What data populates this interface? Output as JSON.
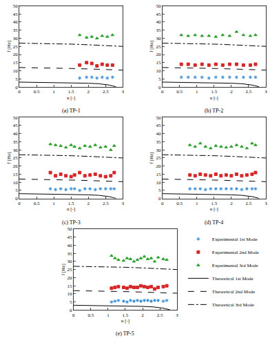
{
  "chart_data": [
    {
      "type": "scatter",
      "title": "(a) TP-1",
      "x_label": "u [-]",
      "y_label": "f [Hz]",
      "xlim": [
        0,
        3
      ],
      "xticks": [
        0,
        0.5,
        1,
        1.5,
        2,
        2.5,
        3
      ],
      "ylim": [
        0,
        50
      ],
      "yticks": [
        0,
        5,
        10,
        15,
        20,
        25,
        30,
        35,
        40,
        45,
        50
      ],
      "grid": false,
      "series": [
        {
          "name": "Experimental 1st Mode",
          "type": "scatter",
          "color": "#3a8fd6",
          "marker": "asterisk",
          "x": [
            1.75,
            1.95,
            2.1,
            2.25,
            2.4,
            2.55,
            2.7
          ],
          "values": [
            5.5,
            6,
            6,
            5.5,
            6,
            5.5,
            6
          ]
        },
        {
          "name": "Experimental 2nd Mode",
          "type": "scatter",
          "color": "#d62728",
          "marker": "square",
          "x": [
            1.75,
            1.95,
            2.1,
            2.25,
            2.4,
            2.55,
            2.7
          ],
          "values": [
            13.5,
            15,
            14.5,
            13,
            14,
            13.5,
            13.5
          ]
        },
        {
          "name": "Experimental 3rd Mode",
          "type": "scatter",
          "color": "#2ca02c",
          "marker": "triangle-up",
          "x": [
            1.75,
            1.95,
            2.1,
            2.25,
            2.4,
            2.55,
            2.7
          ],
          "values": [
            32,
            30.5,
            31,
            30,
            31.5,
            31,
            32
          ]
        },
        {
          "name": "Theoretical 1st Mode",
          "type": "line",
          "color": "#000000",
          "line_style": "solid",
          "x": [
            0,
            0.5,
            1,
            1.5,
            2,
            2.3,
            2.5,
            2.6,
            2.7,
            2.8
          ],
          "values": [
            3,
            2.9,
            2.8,
            2.6,
            2.3,
            2,
            1.6,
            1.2,
            0.7,
            0.1
          ]
        },
        {
          "name": "Theoretical 2nd Mode",
          "type": "line",
          "color": "#000000",
          "line_style": "dash",
          "x": [
            0,
            0.5,
            1,
            1.5,
            2,
            2.5,
            3
          ],
          "values": [
            12,
            11.9,
            11.7,
            11.4,
            11.1,
            10.8,
            10.4
          ]
        },
        {
          "name": "Theoretical 3rd Mode",
          "type": "line",
          "color": "#000000",
          "line_style": "dashdot",
          "x": [
            0,
            0.5,
            1,
            1.5,
            2,
            2.5,
            3
          ],
          "values": [
            27,
            26.9,
            26.7,
            26.4,
            26,
            25.5,
            25
          ]
        }
      ]
    },
    {
      "type": "scatter",
      "title": "(b) TP-2",
      "x_label": "u [-]",
      "y_label": "f [Hz]",
      "xlim": [
        0,
        3
      ],
      "xticks": [
        0,
        0.5,
        1,
        1.5,
        2,
        2.5,
        3
      ],
      "ylim": [
        0,
        50
      ],
      "yticks": [
        0,
        5,
        10,
        15,
        20,
        25,
        30,
        35,
        40,
        45,
        50
      ],
      "grid": false,
      "series": [
        {
          "name": "Experimental 1st Mode",
          "type": "scatter",
          "color": "#3a8fd6",
          "marker": "asterisk",
          "x": [
            0.55,
            0.75,
            0.95,
            1.15,
            1.35,
            1.55,
            1.75,
            1.95,
            2.15,
            2.35,
            2.55,
            2.7
          ],
          "values": [
            6,
            6,
            6,
            6,
            5.5,
            6,
            6,
            6,
            6,
            6,
            6,
            6
          ]
        },
        {
          "name": "Experimental 2nd Mode",
          "type": "scatter",
          "color": "#d62728",
          "marker": "square",
          "x": [
            0.55,
            0.75,
            0.95,
            1.15,
            1.35,
            1.55,
            1.75,
            1.95,
            2.15,
            2.35,
            2.55,
            2.7
          ],
          "values": [
            14,
            14,
            13.5,
            14,
            13.5,
            14,
            13.5,
            14,
            14,
            13.5,
            13.5,
            14
          ]
        },
        {
          "name": "Experimental 3rd Mode",
          "type": "scatter",
          "color": "#2ca02c",
          "marker": "triangle-up",
          "x": [
            0.55,
            0.75,
            0.95,
            1.15,
            1.35,
            1.55,
            1.75,
            1.95,
            2.15,
            2.35,
            2.55,
            2.7
          ],
          "values": [
            32,
            31.5,
            32,
            31.5,
            31.5,
            31,
            32,
            31.5,
            34,
            32,
            31.5,
            32
          ]
        },
        {
          "name": "Theoretical 1st Mode",
          "type": "line",
          "color": "#000000",
          "line_style": "solid",
          "x": [
            0,
            0.5,
            1,
            1.5,
            2,
            2.3,
            2.5,
            2.6,
            2.7,
            2.8
          ],
          "values": [
            3,
            2.9,
            2.8,
            2.6,
            2.3,
            2,
            1.6,
            1.2,
            0.7,
            0.1
          ]
        },
        {
          "name": "Theoretical 2nd Mode",
          "type": "line",
          "color": "#000000",
          "line_style": "dash",
          "x": [
            0,
            0.5,
            1,
            1.5,
            2,
            2.5,
            3
          ],
          "values": [
            12,
            11.9,
            11.7,
            11.4,
            11.1,
            10.8,
            10.4
          ]
        },
        {
          "name": "Theoretical 3rd Mode",
          "type": "line",
          "color": "#000000",
          "line_style": "dashdot",
          "x": [
            0,
            0.5,
            1,
            1.5,
            2,
            2.5,
            3
          ],
          "values": [
            27,
            26.9,
            26.7,
            26.4,
            26,
            25.5,
            25
          ]
        }
      ]
    },
    {
      "type": "scatter",
      "title": "(c) TP-3",
      "x_label": "u [-]",
      "y_label": "f [Hz]",
      "xlim": [
        0,
        3
      ],
      "xticks": [
        0,
        0.5,
        1,
        1.5,
        2,
        2.5,
        3
      ],
      "ylim": [
        0,
        50
      ],
      "yticks": [
        0,
        5,
        10,
        15,
        20,
        25,
        30,
        35,
        40,
        45,
        50
      ],
      "grid": false,
      "series": [
        {
          "name": "Experimental 1st Mode",
          "type": "scatter",
          "color": "#3a8fd6",
          "marker": "asterisk",
          "x": [
            0.9,
            1.05,
            1.2,
            1.35,
            1.5,
            1.6,
            1.75,
            1.9,
            2.05,
            2.2,
            2.35,
            2.5,
            2.65,
            2.75
          ],
          "values": [
            6,
            5.5,
            6,
            5.5,
            6,
            6,
            5,
            6,
            6,
            5.5,
            6,
            6,
            6,
            6
          ]
        },
        {
          "name": "Experimental 2nd Mode",
          "type": "scatter",
          "color": "#d62728",
          "marker": "square",
          "x": [
            0.9,
            1.05,
            1.2,
            1.35,
            1.5,
            1.6,
            1.75,
            1.9,
            2.05,
            2.2,
            2.35,
            2.5,
            2.65,
            2.75
          ],
          "values": [
            16,
            14,
            15,
            14,
            13.5,
            14.5,
            16,
            14,
            14.5,
            15,
            14,
            13.5,
            14,
            16
          ]
        },
        {
          "name": "Experimental 3rd Mode",
          "type": "scatter",
          "color": "#2ca02c",
          "marker": "triangle-up",
          "x": [
            0.9,
            1.05,
            1.2,
            1.35,
            1.5,
            1.6,
            1.75,
            1.9,
            2.05,
            2.2,
            2.35,
            2.5,
            2.65,
            2.75
          ],
          "values": [
            33.5,
            33,
            32.5,
            31.5,
            33,
            32,
            31,
            32.5,
            32,
            33,
            31.5,
            32,
            30,
            32.5
          ]
        },
        {
          "name": "Theoretical 1st Mode",
          "type": "line",
          "color": "#000000",
          "line_style": "solid",
          "x": [
            0,
            0.5,
            1,
            1.5,
            2,
            2.3,
            2.5,
            2.6,
            2.7,
            2.8
          ],
          "values": [
            3,
            2.9,
            2.8,
            2.6,
            2.3,
            2,
            1.6,
            1.2,
            0.7,
            0.1
          ]
        },
        {
          "name": "Theoretical 2nd Mode",
          "type": "line",
          "color": "#000000",
          "line_style": "dash",
          "x": [
            0,
            0.5,
            1,
            1.5,
            2,
            2.5,
            3
          ],
          "values": [
            12,
            11.9,
            11.7,
            11.4,
            11.1,
            10.8,
            10.4
          ]
        },
        {
          "name": "Theoretical 3rd Mode",
          "type": "line",
          "color": "#000000",
          "line_style": "dashdot",
          "x": [
            0,
            0.5,
            1,
            1.5,
            2,
            2.5,
            3
          ],
          "values": [
            27,
            26.9,
            26.7,
            26.4,
            26,
            25.5,
            25
          ]
        }
      ]
    },
    {
      "type": "scatter",
      "title": "(d) TP-4",
      "x_label": "u [-]",
      "y_label": "f [Hz]",
      "xlim": [
        0,
        3
      ],
      "xticks": [
        0,
        0.5,
        1,
        1.5,
        2,
        2.5,
        3
      ],
      "ylim": [
        0,
        50
      ],
      "yticks": [
        0,
        5,
        10,
        15,
        20,
        25,
        30,
        35,
        40,
        45,
        50
      ],
      "grid": false,
      "series": [
        {
          "name": "Experimental 1st Mode",
          "type": "scatter",
          "color": "#3a8fd6",
          "marker": "asterisk",
          "x": [
            0.8,
            0.95,
            1.1,
            1.25,
            1.4,
            1.55,
            1.7,
            1.85,
            2.0,
            2.15,
            2.3,
            2.45,
            2.6,
            2.7
          ],
          "values": [
            6,
            6,
            6,
            5.5,
            6,
            6,
            6,
            6,
            6,
            6,
            5.5,
            6,
            6,
            6
          ]
        },
        {
          "name": "Experimental 2nd Mode",
          "type": "scatter",
          "color": "#d62728",
          "marker": "square",
          "x": [
            0.8,
            0.95,
            1.1,
            1.25,
            1.4,
            1.55,
            1.7,
            1.85,
            2.0,
            2.15,
            2.3,
            2.45,
            2.6,
            2.7
          ],
          "values": [
            14.5,
            14,
            15,
            14.5,
            14,
            15,
            14,
            14.5,
            14,
            15,
            14,
            14.5,
            15,
            16
          ]
        },
        {
          "name": "Experimental 3rd Mode",
          "type": "scatter",
          "color": "#2ca02c",
          "marker": "triangle-up",
          "x": [
            0.8,
            0.95,
            1.1,
            1.25,
            1.4,
            1.55,
            1.7,
            1.85,
            2.0,
            2.15,
            2.3,
            2.45,
            2.6,
            2.7
          ],
          "values": [
            33,
            32,
            34,
            32,
            31,
            32.5,
            32,
            31.5,
            32,
            33,
            32,
            31,
            34,
            33
          ]
        },
        {
          "name": "Theoretical 1st Mode",
          "type": "line",
          "color": "#000000",
          "line_style": "solid",
          "x": [
            0,
            0.5,
            1,
            1.5,
            2,
            2.3,
            2.5,
            2.6,
            2.7,
            2.8
          ],
          "values": [
            3,
            2.9,
            2.8,
            2.6,
            2.3,
            2,
            1.6,
            1.2,
            0.7,
            0.1
          ]
        },
        {
          "name": "Theoretical 2nd Mode",
          "type": "line",
          "color": "#000000",
          "line_style": "dash",
          "x": [
            0,
            0.5,
            1,
            1.5,
            2,
            2.5,
            3
          ],
          "values": [
            12,
            11.9,
            11.7,
            11.4,
            11.1,
            10.8,
            10.4
          ]
        },
        {
          "name": "Theoretical 3rd Mode",
          "type": "line",
          "color": "#000000",
          "line_style": "dashdot",
          "x": [
            0,
            0.5,
            1,
            1.5,
            2,
            2.5,
            3
          ],
          "values": [
            27,
            26.9,
            26.7,
            26.4,
            26,
            25.5,
            25
          ]
        }
      ]
    },
    {
      "type": "scatter",
      "title": "(e) TP-5",
      "x_label": "u [-]",
      "y_label": "f [Hz]",
      "xlim": [
        0,
        3
      ],
      "xticks": [
        0,
        0.5,
        1,
        1.5,
        2,
        2.5,
        3
      ],
      "ylim": [
        0,
        50
      ],
      "yticks": [
        0,
        5,
        10,
        15,
        20,
        25,
        30,
        35,
        40,
        45,
        50
      ],
      "grid": false,
      "series": [
        {
          "name": "Experimental 1st Mode",
          "type": "scatter",
          "color": "#3a8fd6",
          "marker": "asterisk",
          "x": [
            1.1,
            1.2,
            1.3,
            1.45,
            1.55,
            1.65,
            1.75,
            1.85,
            1.95,
            2.05,
            2.15,
            2.25,
            2.35,
            2.45,
            2.6,
            2.7
          ],
          "values": [
            5,
            5.5,
            6,
            5.5,
            5,
            6,
            5.5,
            6,
            5.5,
            6,
            6,
            5.5,
            6,
            6,
            5.5,
            6
          ]
        },
        {
          "name": "Experimental 2nd Mode",
          "type": "scatter",
          "color": "#d62728",
          "marker": "square",
          "x": [
            1.1,
            1.2,
            1.3,
            1.45,
            1.55,
            1.65,
            1.75,
            1.85,
            1.95,
            2.05,
            2.15,
            2.25,
            2.35,
            2.45,
            2.6,
            2.7
          ],
          "values": [
            13.5,
            14,
            14.5,
            14,
            13.5,
            14.5,
            14,
            14,
            15,
            14.5,
            14,
            14.5,
            13,
            14,
            14.5,
            15
          ]
        },
        {
          "name": "Experimental 3rd Mode",
          "type": "scatter",
          "color": "#2ca02c",
          "marker": "triangle-up",
          "x": [
            1.1,
            1.2,
            1.3,
            1.45,
            1.55,
            1.65,
            1.75,
            1.85,
            1.95,
            2.05,
            2.15,
            2.25,
            2.35,
            2.45,
            2.6,
            2.7
          ],
          "values": [
            33.5,
            32,
            31,
            30.5,
            32,
            31.5,
            30,
            31,
            32,
            33,
            31.5,
            32,
            30,
            32.5,
            31.5,
            31
          ]
        },
        {
          "name": "Theoretical 1st Mode",
          "type": "line",
          "color": "#000000",
          "line_style": "solid",
          "x": [
            0,
            0.5,
            1,
            1.5,
            2,
            2.3,
            2.5,
            2.6,
            2.7,
            2.8
          ],
          "values": [
            3,
            2.9,
            2.8,
            2.6,
            2.3,
            2,
            1.6,
            1.2,
            0.7,
            0.1
          ]
        },
        {
          "name": "Theoretical 2nd Mode",
          "type": "line",
          "color": "#000000",
          "line_style": "dash",
          "x": [
            0,
            0.5,
            1,
            1.5,
            2,
            2.5,
            3
          ],
          "values": [
            12,
            11.9,
            11.7,
            11.4,
            11.1,
            10.8,
            10.4
          ]
        },
        {
          "name": "Theoretical 3rd Mode",
          "type": "line",
          "color": "#000000",
          "line_style": "dashdot",
          "x": [
            0,
            0.5,
            1,
            1.5,
            2,
            2.5,
            3
          ],
          "values": [
            27,
            26.9,
            26.7,
            26.4,
            26,
            25.5,
            25
          ]
        }
      ]
    }
  ]
}
